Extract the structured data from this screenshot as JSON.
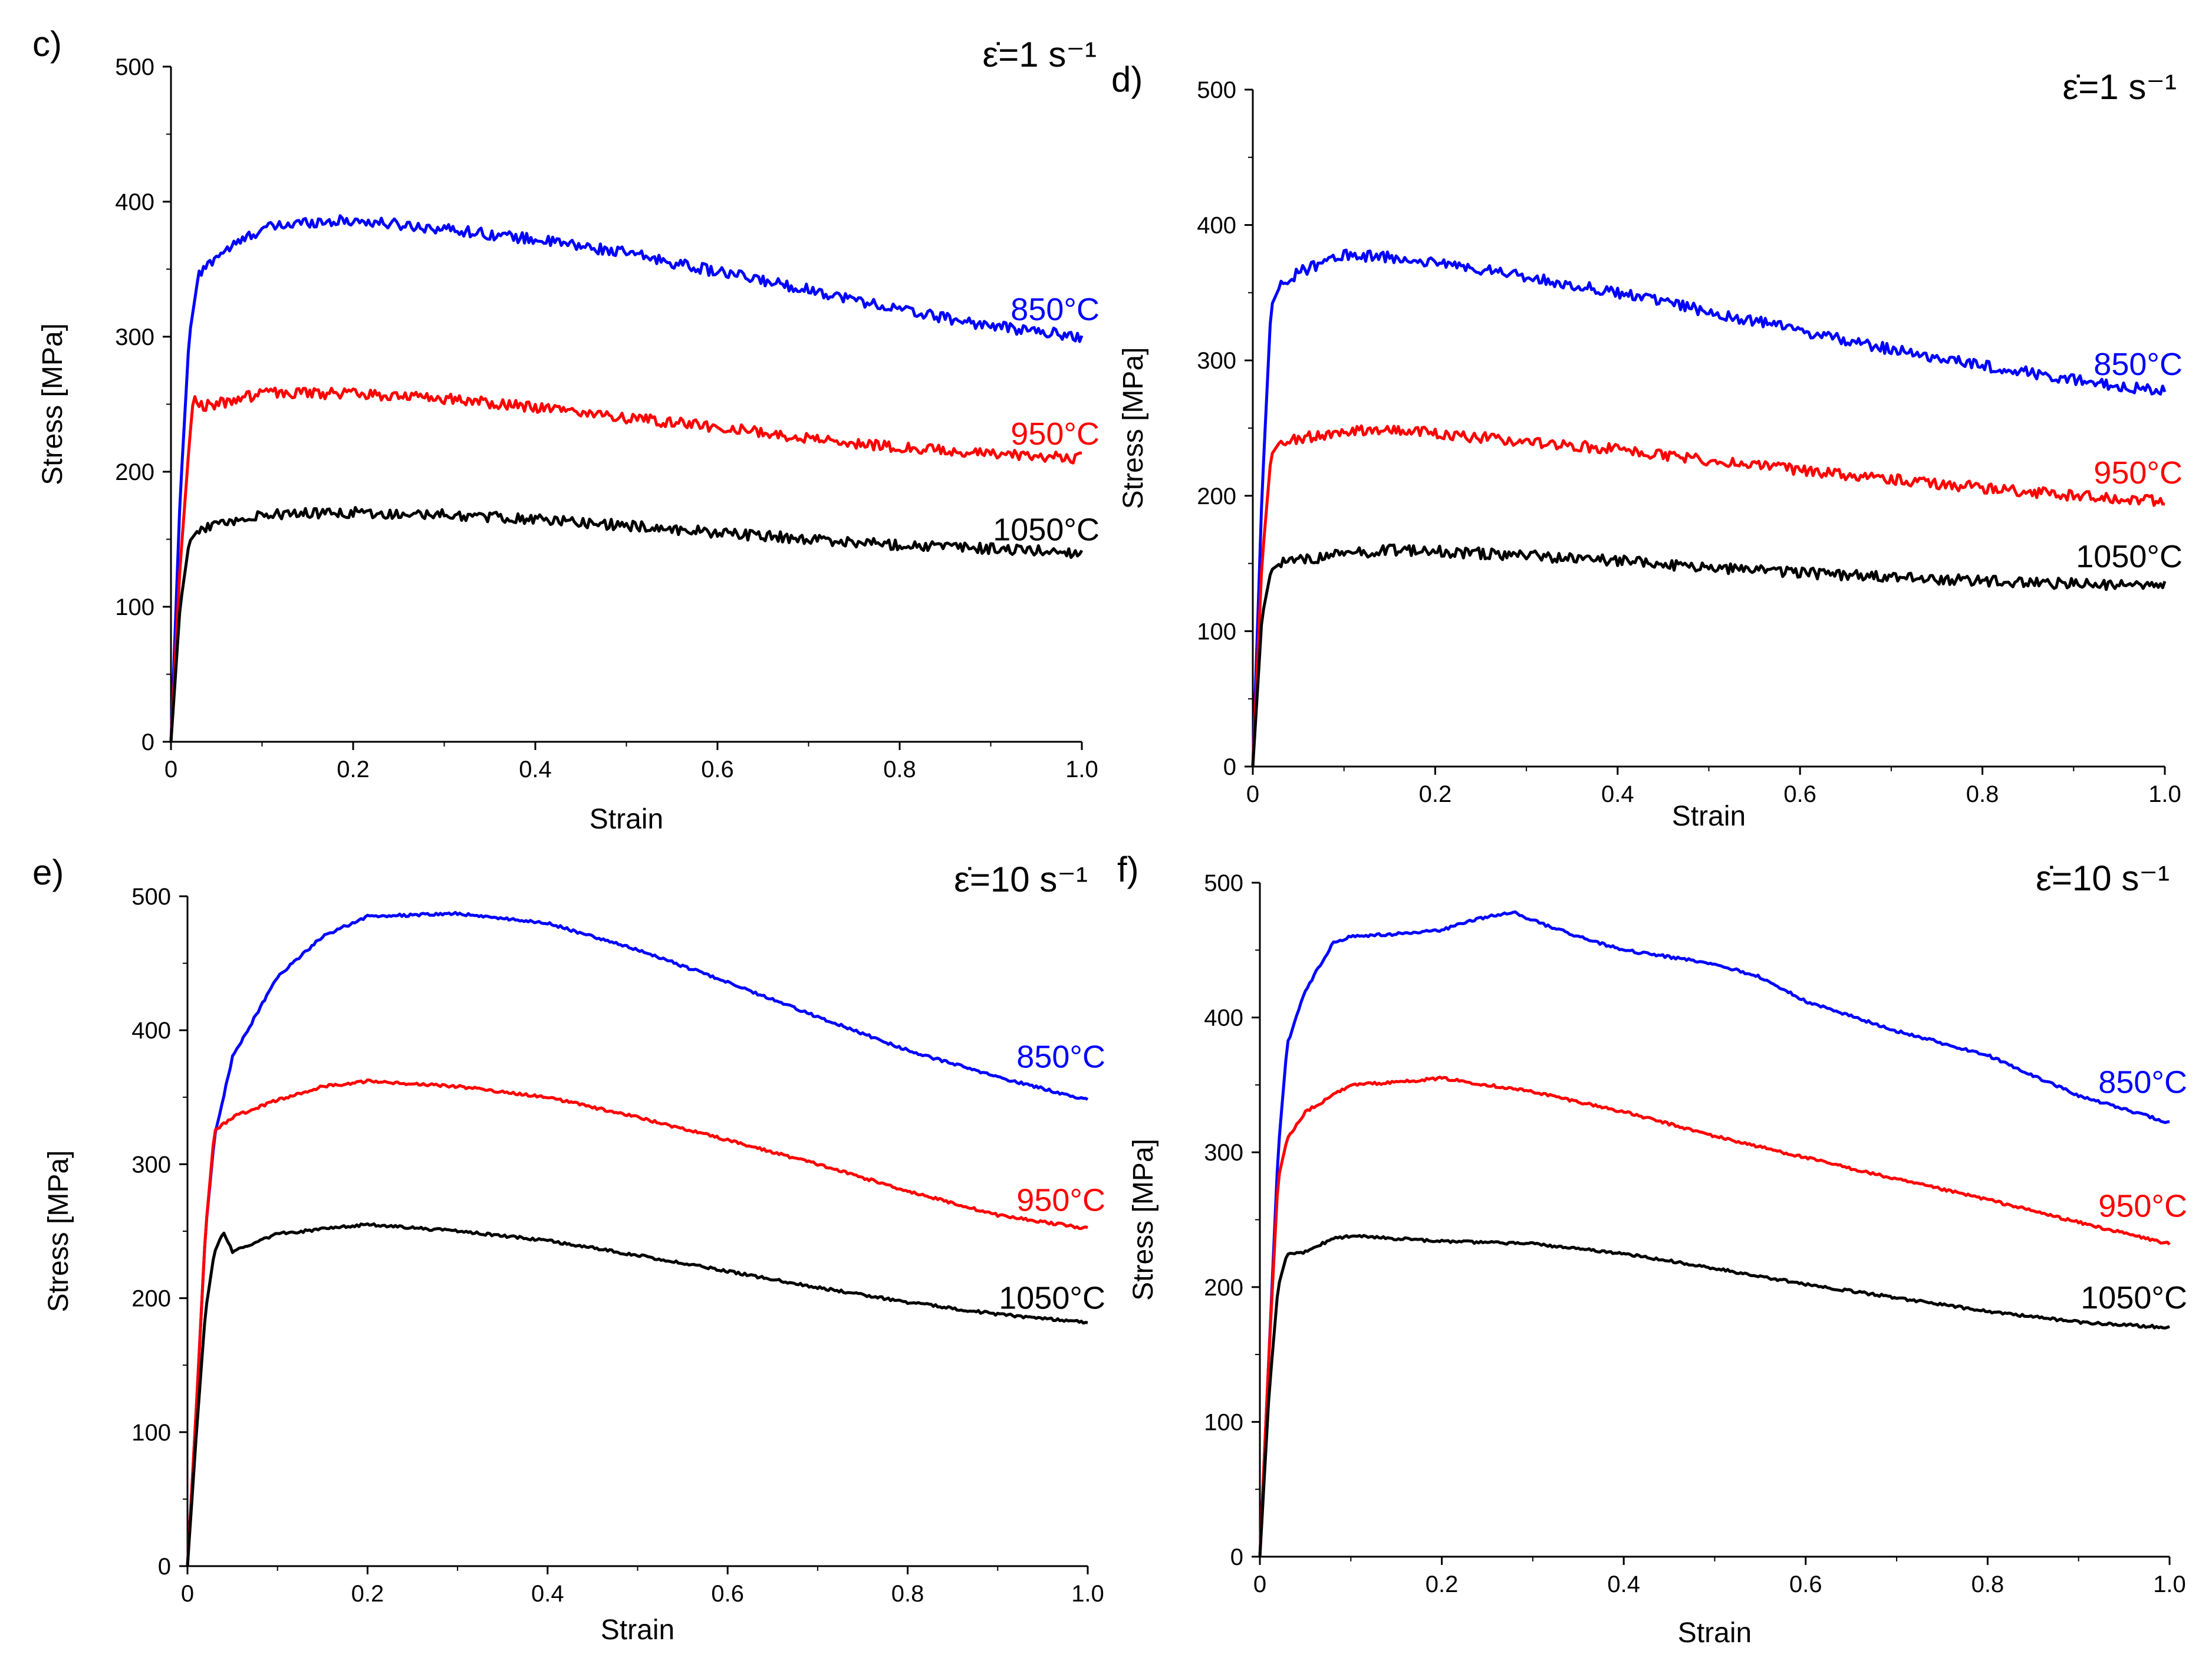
{
  "chart_data": [
    {
      "panel": "c)",
      "type": "line",
      "rate_label": "ε̇=1 s⁻¹",
      "xlabel": "Strain",
      "ylabel": "Stress [MPa]",
      "xlim": [
        0,
        1.0
      ],
      "ylim": [
        0,
        500
      ],
      "xticks": [
        0,
        0.2,
        0.4,
        0.6,
        0.8,
        1.0
      ],
      "xtick_labels": [
        "0",
        "0.2",
        "0.4",
        "0.6",
        "0.8",
        "1.0"
      ],
      "yticks": [
        0,
        100,
        200,
        300,
        400,
        500
      ],
      "ytick_labels": [
        "0",
        "100",
        "200",
        "300",
        "400",
        "500"
      ],
      "noise": 4,
      "series": [
        {
          "name": "850°C",
          "color": "#0000ff",
          "label_value": 320,
          "points": [
            [
              0,
              0
            ],
            [
              0.01,
              180
            ],
            [
              0.02,
              300
            ],
            [
              0.03,
              345
            ],
            [
              0.05,
              360
            ],
            [
              0.1,
              380
            ],
            [
              0.15,
              385
            ],
            [
              0.2,
              386
            ],
            [
              0.3,
              380
            ],
            [
              0.4,
              372
            ],
            [
              0.5,
              362
            ],
            [
              0.6,
              348
            ],
            [
              0.7,
              335
            ],
            [
              0.8,
              320
            ],
            [
              0.9,
              308
            ],
            [
              1.0,
              300
            ]
          ]
        },
        {
          "name": "950°C",
          "color": "#ff0000",
          "label_value": 228,
          "points": [
            [
              0,
              0
            ],
            [
              0.01,
              130
            ],
            [
              0.02,
              220
            ],
            [
              0.025,
              258
            ],
            [
              0.03,
              248
            ],
            [
              0.05,
              250
            ],
            [
              0.1,
              258
            ],
            [
              0.2,
              258
            ],
            [
              0.3,
              254
            ],
            [
              0.4,
              248
            ],
            [
              0.5,
              240
            ],
            [
              0.6,
              233
            ],
            [
              0.7,
              225
            ],
            [
              0.8,
              218
            ],
            [
              0.9,
              213
            ],
            [
              1.0,
              210
            ]
          ]
        },
        {
          "name": "1050°C",
          "color": "#000000",
          "label_value": 157,
          "points": [
            [
              0,
              0
            ],
            [
              0.01,
              100
            ],
            [
              0.02,
              148
            ],
            [
              0.03,
              157
            ],
            [
              0.05,
              160
            ],
            [
              0.1,
              168
            ],
            [
              0.2,
              170
            ],
            [
              0.3,
              168
            ],
            [
              0.4,
              165
            ],
            [
              0.5,
              160
            ],
            [
              0.6,
              155
            ],
            [
              0.7,
              150
            ],
            [
              0.8,
              146
            ],
            [
              0.9,
              143
            ],
            [
              1.0,
              140
            ]
          ]
        }
      ]
    },
    {
      "panel": "d)",
      "type": "line",
      "rate_label": "ε̇=1 s⁻¹",
      "xlabel": "Strain",
      "ylabel": "Stress [MPa]",
      "xlim": [
        0,
        1.0
      ],
      "ylim": [
        0,
        500
      ],
      "xticks": [
        0,
        0.2,
        0.4,
        0.6,
        0.8,
        1.0
      ],
      "xtick_labels": [
        "0",
        "0.2",
        "0.4",
        "0.6",
        "0.8",
        "1.0"
      ],
      "yticks": [
        0,
        100,
        200,
        300,
        400,
        500
      ],
      "ytick_labels": [
        "0",
        "100",
        "200",
        "300",
        "400",
        "500"
      ],
      "noise": 4,
      "series": [
        {
          "name": "850°C",
          "color": "#0000ff",
          "label_value": 297,
          "points": [
            [
              0,
              0
            ],
            [
              0.01,
              200
            ],
            [
              0.02,
              340
            ],
            [
              0.03,
              355
            ],
            [
              0.05,
              365
            ],
            [
              0.1,
              378
            ],
            [
              0.15,
              376
            ],
            [
              0.2,
              372
            ],
            [
              0.3,
              362
            ],
            [
              0.4,
              350
            ],
            [
              0.5,
              336
            ],
            [
              0.6,
              322
            ],
            [
              0.7,
              308
            ],
            [
              0.8,
              296
            ],
            [
              0.9,
              286
            ],
            [
              1.0,
              277
            ]
          ]
        },
        {
          "name": "950°C",
          "color": "#ff0000",
          "label_value": 217,
          "points": [
            [
              0,
              0
            ],
            [
              0.01,
              150
            ],
            [
              0.02,
              230
            ],
            [
              0.03,
              240
            ],
            [
              0.05,
              242
            ],
            [
              0.1,
              248
            ],
            [
              0.15,
              250
            ],
            [
              0.2,
              246
            ],
            [
              0.3,
              240
            ],
            [
              0.4,
              234
            ],
            [
              0.5,
              226
            ],
            [
              0.6,
              219
            ],
            [
              0.7,
              212
            ],
            [
              0.8,
              206
            ],
            [
              0.9,
              200
            ],
            [
              1.0,
              196
            ]
          ]
        },
        {
          "name": "1050°C",
          "color": "#000000",
          "label_value": 155,
          "points": [
            [
              0,
              0
            ],
            [
              0.01,
              110
            ],
            [
              0.02,
              145
            ],
            [
              0.03,
              150
            ],
            [
              0.05,
              152
            ],
            [
              0.1,
              157
            ],
            [
              0.15,
              160
            ],
            [
              0.2,
              159
            ],
            [
              0.3,
              156
            ],
            [
              0.4,
              152
            ],
            [
              0.5,
              147
            ],
            [
              0.6,
              143
            ],
            [
              0.7,
              140
            ],
            [
              0.8,
              137
            ],
            [
              0.9,
              135
            ],
            [
              1.0,
              133
            ]
          ]
        }
      ]
    },
    {
      "panel": "e)",
      "type": "line",
      "rate_label": "ε̇=10 s⁻¹",
      "xlabel": "Strain",
      "ylabel": "Stress [MPa]",
      "xlim": [
        0,
        1.0
      ],
      "ylim": [
        0,
        500
      ],
      "xticks": [
        0,
        0.2,
        0.4,
        0.6,
        0.8,
        1.0
      ],
      "xtick_labels": [
        "0",
        "0.2",
        "0.4",
        "0.6",
        "0.8",
        "1.0"
      ],
      "yticks": [
        0,
        100,
        200,
        300,
        400,
        500
      ],
      "ytick_labels": [
        "0",
        "100",
        "200",
        "300",
        "400",
        "500"
      ],
      "noise": 1,
      "series": [
        {
          "name": "850°C",
          "color": "#0000ff",
          "label_value": 380,
          "points": [
            [
              0,
              0
            ],
            [
              0.01,
              120
            ],
            [
              0.02,
              250
            ],
            [
              0.03,
              320
            ],
            [
              0.05,
              380
            ],
            [
              0.1,
              440
            ],
            [
              0.15,
              470
            ],
            [
              0.2,
              485
            ],
            [
              0.3,
              487
            ],
            [
              0.4,
              480
            ],
            [
              0.5,
              460
            ],
            [
              0.6,
              436
            ],
            [
              0.7,
              410
            ],
            [
              0.8,
              385
            ],
            [
              0.9,
              365
            ],
            [
              1.0,
              348
            ]
          ]
        },
        {
          "name": "950°C",
          "color": "#ff0000",
          "label_value": 273,
          "points": [
            [
              0,
              0
            ],
            [
              0.01,
              120
            ],
            [
              0.02,
              250
            ],
            [
              0.03,
              325
            ],
            [
              0.05,
              335
            ],
            [
              0.1,
              348
            ],
            [
              0.15,
              358
            ],
            [
              0.2,
              362
            ],
            [
              0.3,
              358
            ],
            [
              0.4,
              350
            ],
            [
              0.5,
              335
            ],
            [
              0.6,
              318
            ],
            [
              0.7,
              300
            ],
            [
              0.8,
              280
            ],
            [
              0.9,
              262
            ],
            [
              1.0,
              252
            ]
          ]
        },
        {
          "name": "1050°C",
          "color": "#000000",
          "label_value": 200,
          "points": [
            [
              0,
              0
            ],
            [
              0.01,
              100
            ],
            [
              0.02,
              190
            ],
            [
              0.03,
              235
            ],
            [
              0.04,
              250
            ],
            [
              0.05,
              235
            ],
            [
              0.1,
              248
            ],
            [
              0.2,
              255
            ],
            [
              0.3,
              250
            ],
            [
              0.4,
              243
            ],
            [
              0.5,
              232
            ],
            [
              0.6,
              220
            ],
            [
              0.7,
              208
            ],
            [
              0.8,
              197
            ],
            [
              0.9,
              188
            ],
            [
              1.0,
              182
            ]
          ]
        }
      ]
    },
    {
      "panel": "f)",
      "type": "line",
      "rate_label": "ε̇=10 s⁻¹",
      "xlabel": "Strain",
      "ylabel": "Stress [MPa]",
      "xlim": [
        0,
        1.0
      ],
      "ylim": [
        0,
        500
      ],
      "xticks": [
        0,
        0.2,
        0.4,
        0.6,
        0.8,
        1.0
      ],
      "xtick_labels": [
        "0",
        "0.2",
        "0.4",
        "0.6",
        "0.8",
        "1.0"
      ],
      "yticks": [
        0,
        100,
        200,
        300,
        400,
        500
      ],
      "ytick_labels": [
        "0",
        "100",
        "200",
        "300",
        "400",
        "500"
      ],
      "noise": 1,
      "series": [
        {
          "name": "850°C",
          "color": "#0000ff",
          "label_value": 352,
          "points": [
            [
              0,
              0
            ],
            [
              0.01,
              150
            ],
            [
              0.02,
              300
            ],
            [
              0.03,
              380
            ],
            [
              0.05,
              420
            ],
            [
              0.08,
              455
            ],
            [
              0.1,
              460
            ],
            [
              0.15,
              462
            ],
            [
              0.2,
              465
            ],
            [
              0.25,
              475
            ],
            [
              0.28,
              478
            ],
            [
              0.3,
              472
            ],
            [
              0.35,
              460
            ],
            [
              0.4,
              450
            ],
            [
              0.5,
              440
            ],
            [
              0.55,
              430
            ],
            [
              0.6,
              412
            ],
            [
              0.7,
              390
            ],
            [
              0.8,
              372
            ],
            [
              0.9,
              342
            ],
            [
              1.0,
              322
            ]
          ]
        },
        {
          "name": "950°C",
          "color": "#ff0000",
          "label_value": 260,
          "points": [
            [
              0,
              0
            ],
            [
              0.01,
              150
            ],
            [
              0.02,
              280
            ],
            [
              0.03,
              310
            ],
            [
              0.05,
              330
            ],
            [
              0.1,
              350
            ],
            [
              0.15,
              352
            ],
            [
              0.2,
              355
            ],
            [
              0.3,
              345
            ],
            [
              0.4,
              330
            ],
            [
              0.5,
              312
            ],
            [
              0.6,
              296
            ],
            [
              0.7,
              280
            ],
            [
              0.8,
              265
            ],
            [
              0.9,
              248
            ],
            [
              1.0,
              232
            ]
          ]
        },
        {
          "name": "1050°C",
          "color": "#000000",
          "label_value": 192,
          "points": [
            [
              0,
              0
            ],
            [
              0.01,
              120
            ],
            [
              0.02,
              200
            ],
            [
              0.03,
              225
            ],
            [
              0.05,
              226
            ],
            [
              0.08,
              236
            ],
            [
              0.1,
              238
            ],
            [
              0.15,
              236
            ],
            [
              0.2,
              234
            ],
            [
              0.3,
              232
            ],
            [
              0.4,
              225
            ],
            [
              0.5,
              214
            ],
            [
              0.6,
              202
            ],
            [
              0.7,
              192
            ],
            [
              0.8,
              182
            ],
            [
              0.9,
              174
            ],
            [
              1.0,
              170
            ]
          ]
        }
      ]
    }
  ]
}
